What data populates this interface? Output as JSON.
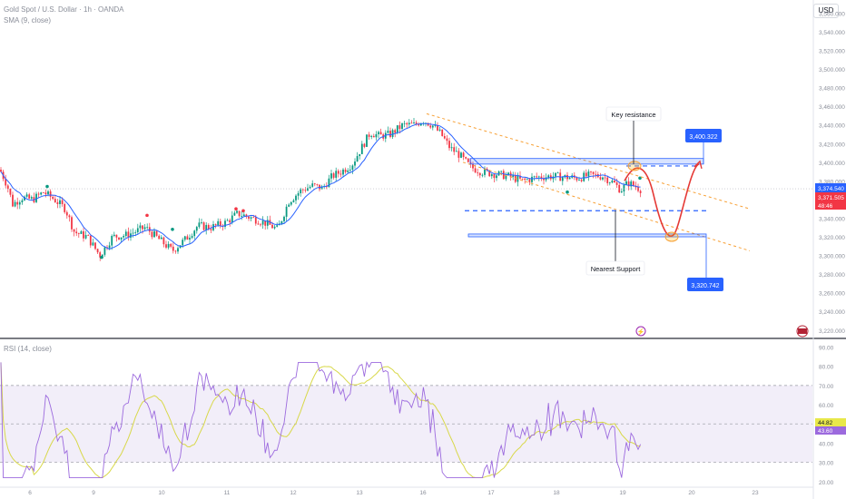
{
  "header": {
    "symbol_line": "Gold Spot / U.S. Dollar · 1h · OANDA",
    "indicator_line": "SMA (9, close)",
    "rsi_line": "RSI (14, close)",
    "currency": "USD"
  },
  "chart_data": [
    {
      "type": "line",
      "title": "Gold Spot / U.S. Dollar · 1h · OANDA",
      "series": [
        {
          "name": "SMA (9, close)",
          "color": "#2962ff"
        }
      ],
      "price_axis_ticks": [
        3560,
        3540,
        3520,
        3500,
        3480,
        3460,
        3440,
        3420,
        3400,
        3380,
        3360,
        3340,
        3320,
        3300,
        3280,
        3260,
        3240,
        3220
      ],
      "price_axis_labels": [
        "3,560.000",
        "3,540.000",
        "3,520.000",
        "3,500.000",
        "3,480.000",
        "3,460.000",
        "3,440.000",
        "3,420.000",
        "3,400.000",
        "3,380.000",
        "3,360.000",
        "3,340.000",
        "3,320.000",
        "3,300.000",
        "3,280.000",
        "3,260.000",
        "3,240.000",
        "3,220.000"
      ],
      "ylim": [
        3212,
        3574
      ],
      "x_ticks": [
        "6",
        "9",
        "10",
        "11",
        "12",
        "13",
        "16",
        "17",
        "18",
        "19",
        "20",
        "23"
      ],
      "annotations": {
        "key_resistance_label": "Key resistance",
        "nearest_support_label": "Nearest Support",
        "target_high": "3,400.322",
        "target_low": "3,320.742",
        "resistance_zone": [
          3398,
          3404
        ],
        "support_zone": [
          3320,
          3323
        ],
        "dashed_level_upper": 3396,
        "dashed_level_lower": 3348,
        "channel_upper": [
          [
            3452,
            3452
          ],
          [
            3352,
            3350
          ]
        ],
        "channel_lower": [
          [
            3400,
            3398
          ],
          [
            3305,
            3305
          ]
        ]
      },
      "current_price_labels": [
        {
          "value": "3,374.540",
          "color": "#2962ff"
        },
        {
          "value": "3,371.505",
          "color": "#f23645"
        },
        {
          "value": "48:46",
          "color": "#f23645"
        }
      ],
      "last_price": 3371.505,
      "sma_last": 3374.54
    },
    {
      "type": "line",
      "title": "RSI (14, close)",
      "series": [
        {
          "name": "RSI",
          "color": "#9c6ade"
        },
        {
          "name": "RSI-based MA",
          "color": "#d8d84a"
        }
      ],
      "ylim": [
        18,
        94
      ],
      "bands": {
        "upper": 70,
        "middle": 50,
        "lower": 30
      },
      "axis_labels": [
        "90.00",
        "80.00",
        "70.00",
        "60.00",
        "50.00",
        "40.00",
        "30.00",
        "20.00"
      ],
      "axis_ticks": [
        90,
        80,
        70,
        60,
        50,
        40,
        30,
        20
      ],
      "current_labels": [
        {
          "value": "44.82",
          "color": "#e8e84a"
        },
        {
          "value": "43.60",
          "color": "#9c6ade"
        }
      ]
    }
  ]
}
